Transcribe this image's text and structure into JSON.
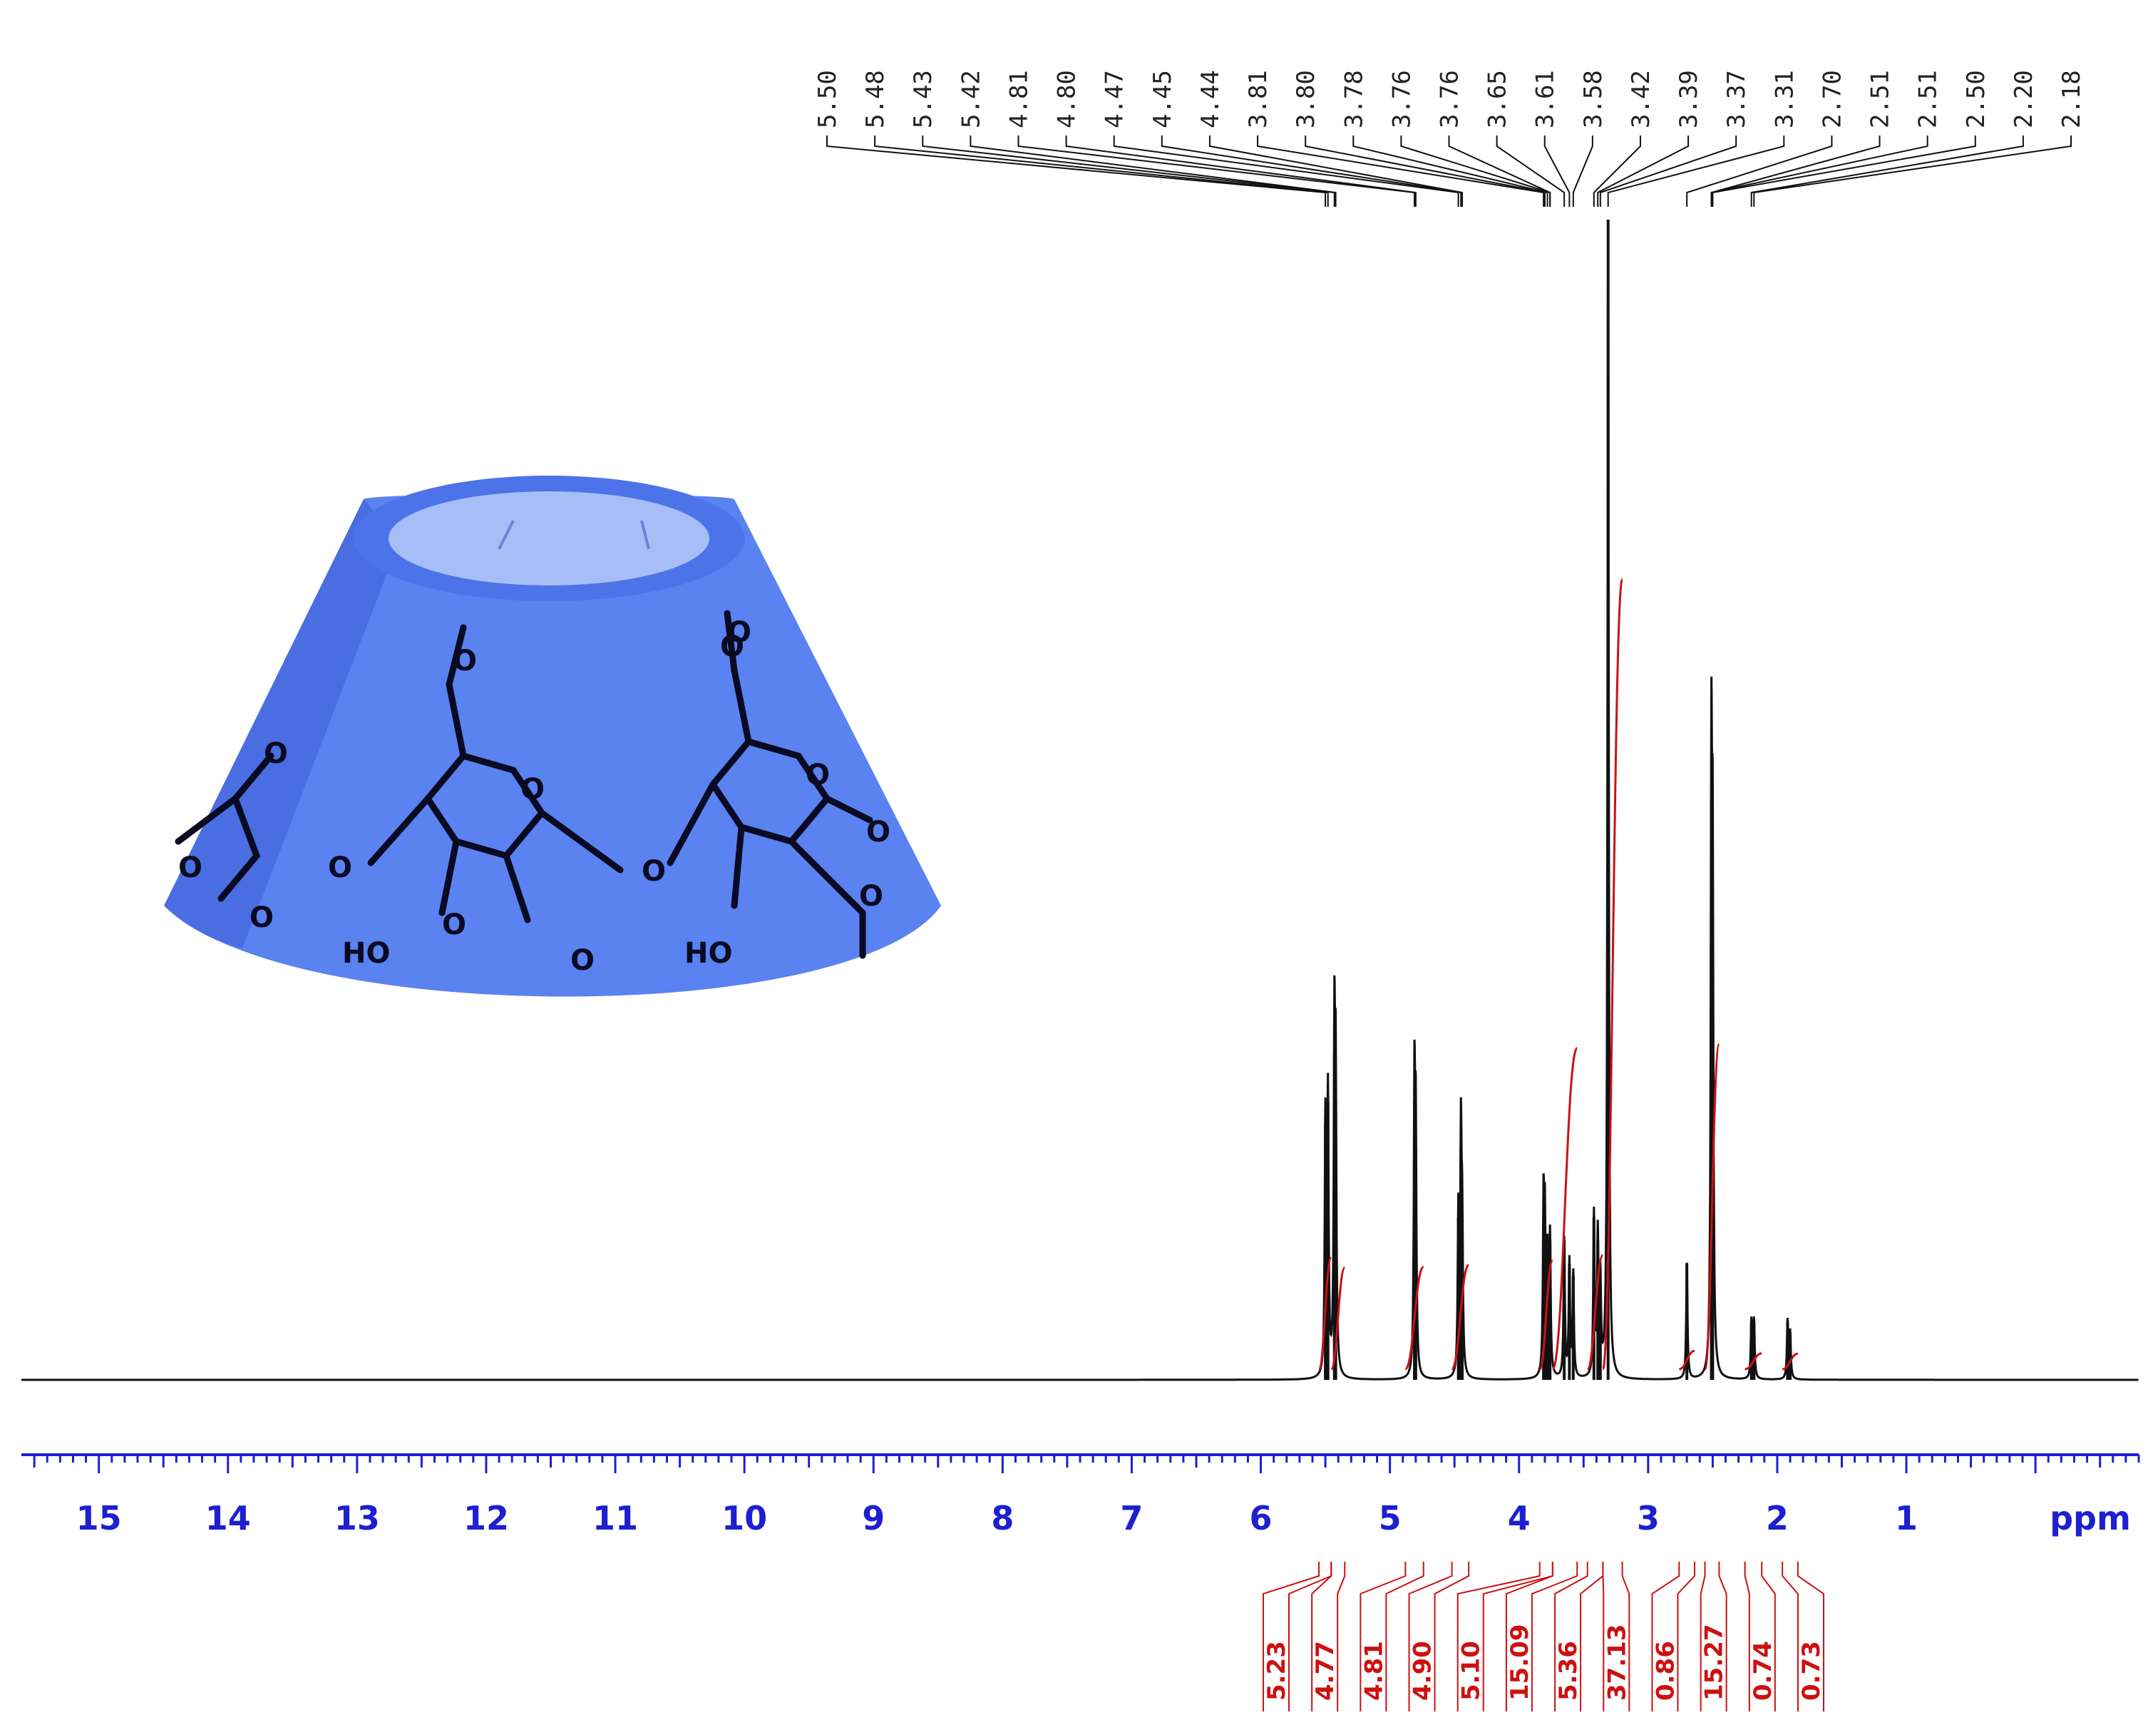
{
  "colors": {
    "spectrum": "#111111",
    "integral": "#cc1111",
    "axis": "#1d1fd0",
    "cone": "#5a82f0",
    "cone_dark": "#3e5fd6",
    "cavity": "#a6bdf7",
    "peak_labels": "#222222"
  },
  "chart_data": {
    "type": "line",
    "title": "",
    "xlabel": "ppm",
    "ylabel": "",
    "x_reversed": true,
    "xlim": [
      15.6,
      -0.8
    ],
    "ticks": [
      "15",
      "14",
      "13",
      "12",
      "11",
      "10",
      "9",
      "8",
      "7",
      "6",
      "5",
      "4",
      "3",
      "2",
      "1"
    ],
    "unit_label": "ppm",
    "peak_list": [
      "5.50",
      "5.48",
      "5.43",
      "5.42",
      "4.81",
      "4.80",
      "4.47",
      "4.45",
      "4.44",
      "3.81",
      "3.80",
      "3.78",
      "3.76",
      "3.76",
      "3.65",
      "3.61",
      "3.58",
      "3.42",
      "3.39",
      "3.37",
      "3.31",
      "2.70",
      "2.51",
      "2.51",
      "2.50",
      "2.20",
      "2.18"
    ],
    "peaks": [
      {
        "ppm": 5.5,
        "height": 0.22
      },
      {
        "ppm": 5.48,
        "height": 0.24
      },
      {
        "ppm": 5.43,
        "height": 0.28
      },
      {
        "ppm": 5.42,
        "height": 0.24
      },
      {
        "ppm": 4.81,
        "height": 0.24
      },
      {
        "ppm": 4.8,
        "height": 0.2
      },
      {
        "ppm": 4.47,
        "height": 0.14
      },
      {
        "ppm": 4.45,
        "height": 0.2
      },
      {
        "ppm": 4.44,
        "height": 0.12
      },
      {
        "ppm": 3.81,
        "height": 0.14
      },
      {
        "ppm": 3.8,
        "height": 0.12
      },
      {
        "ppm": 3.78,
        "height": 0.1
      },
      {
        "ppm": 3.76,
        "height": 0.12
      },
      {
        "ppm": 3.65,
        "height": 0.12
      },
      {
        "ppm": 3.61,
        "height": 0.1
      },
      {
        "ppm": 3.58,
        "height": 0.09
      },
      {
        "ppm": 3.42,
        "height": 0.14
      },
      {
        "ppm": 3.39,
        "height": 0.12
      },
      {
        "ppm": 3.37,
        "height": 0.08
      },
      {
        "ppm": 3.31,
        "height": 1.0
      },
      {
        "ppm": 2.7,
        "height": 0.1
      },
      {
        "ppm": 2.51,
        "height": 0.5
      },
      {
        "ppm": 2.5,
        "height": 0.4
      },
      {
        "ppm": 2.2,
        "height": 0.05
      },
      {
        "ppm": 2.18,
        "height": 0.05
      },
      {
        "ppm": 1.92,
        "height": 0.05
      },
      {
        "ppm": 1.9,
        "height": 0.04
      }
    ],
    "integrals": [
      {
        "value": "5.23",
        "from": 5.55,
        "to": 5.455
      },
      {
        "value": "4.77",
        "from": 5.455,
        "to": 5.35
      },
      {
        "value": "4.81",
        "from": 4.88,
        "to": 4.74
      },
      {
        "value": "4.90",
        "from": 4.52,
        "to": 4.39
      },
      {
        "value": "5.10",
        "from": 3.84,
        "to": 3.74
      },
      {
        "value": "15.09",
        "from": 3.74,
        "to": 3.55
      },
      {
        "value": "5.36",
        "from": 3.47,
        "to": 3.35
      },
      {
        "value": "37.13",
        "from": 3.35,
        "to": 3.2
      },
      {
        "value": "0.86",
        "from": 2.76,
        "to": 2.64
      },
      {
        "value": "15.27",
        "from": 2.56,
        "to": 2.45
      },
      {
        "value": "0.74",
        "from": 2.25,
        "to": 2.12
      },
      {
        "value": "0.73",
        "from": 1.96,
        "to": 1.84
      }
    ]
  },
  "structure": {
    "labels": [
      "HO",
      "HO",
      "O",
      "O",
      "O",
      "O",
      "O",
      "O",
      "O",
      "O",
      "O",
      "O",
      "O",
      "O",
      "O",
      "O"
    ]
  }
}
